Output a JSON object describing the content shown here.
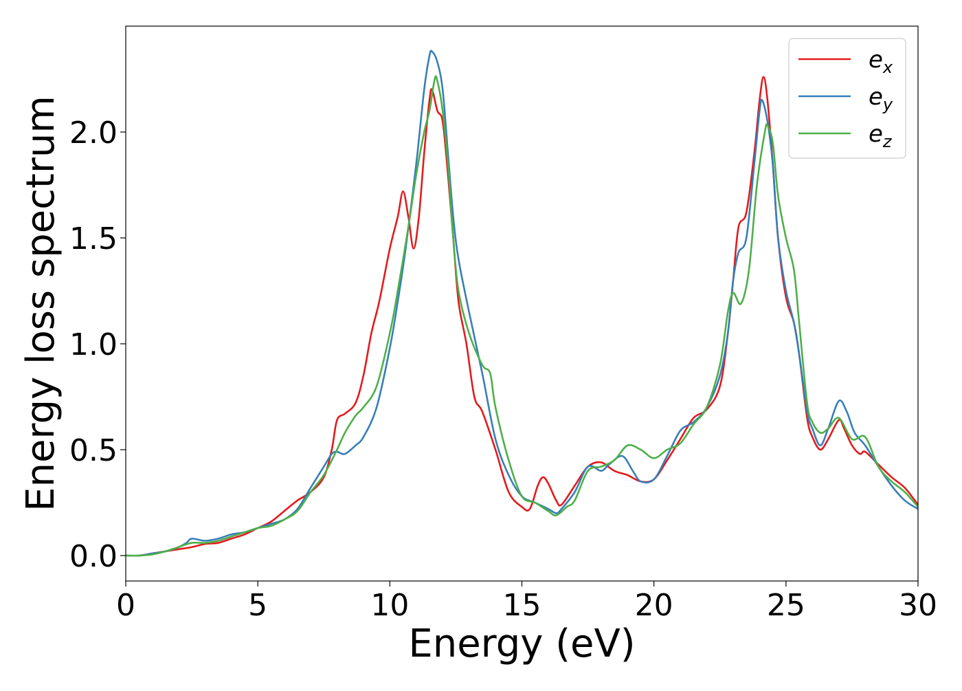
{
  "chart_data": {
    "type": "line",
    "title": "",
    "xlabel": "Energy (eV)",
    "ylabel": "Energy loss spectrum",
    "xlim": [
      0,
      30
    ],
    "ylim": [
      -0.12,
      2.5
    ],
    "xticks": [
      0,
      5,
      10,
      15,
      20,
      25,
      30
    ],
    "xtick_labels": [
      "0",
      "5",
      "10",
      "15",
      "20",
      "25",
      "30"
    ],
    "yticks": [
      0.0,
      0.5,
      1.0,
      1.5,
      2.0
    ],
    "ytick_labels": [
      "0.0",
      "0.5",
      "1.0",
      "1.5",
      "2.0"
    ],
    "grid": false,
    "legend_position": "top-right",
    "series": [
      {
        "name": "e_x",
        "label_base": "e",
        "label_sub": "x",
        "color": "#e41a1c",
        "points": [
          [
            0,
            0
          ],
          [
            0.5,
            0.0
          ],
          [
            1,
            0.01
          ],
          [
            1.5,
            0.02
          ],
          [
            2,
            0.03
          ],
          [
            2.5,
            0.04
          ],
          [
            3,
            0.055
          ],
          [
            3.5,
            0.06
          ],
          [
            4,
            0.08
          ],
          [
            4.5,
            0.1
          ],
          [
            5,
            0.13
          ],
          [
            5.5,
            0.16
          ],
          [
            6,
            0.21
          ],
          [
            6.5,
            0.26
          ],
          [
            7,
            0.3
          ],
          [
            7.5,
            0.37
          ],
          [
            7.8,
            0.5
          ],
          [
            8,
            0.64
          ],
          [
            8.3,
            0.67
          ],
          [
            8.7,
            0.72
          ],
          [
            9,
            0.85
          ],
          [
            9.3,
            1.05
          ],
          [
            9.6,
            1.2
          ],
          [
            10,
            1.45
          ],
          [
            10.3,
            1.6
          ],
          [
            10.5,
            1.72
          ],
          [
            10.7,
            1.6
          ],
          [
            10.9,
            1.45
          ],
          [
            11.1,
            1.6
          ],
          [
            11.3,
            1.9
          ],
          [
            11.5,
            2.15
          ],
          [
            11.6,
            2.2
          ],
          [
            11.8,
            2.1
          ],
          [
            12,
            2.05
          ],
          [
            12.2,
            1.8
          ],
          [
            12.4,
            1.5
          ],
          [
            12.6,
            1.2
          ],
          [
            12.9,
            1.0
          ],
          [
            13.2,
            0.75
          ],
          [
            13.5,
            0.68
          ],
          [
            14,
            0.5
          ],
          [
            14.5,
            0.3
          ],
          [
            15,
            0.23
          ],
          [
            15.3,
            0.22
          ],
          [
            15.6,
            0.33
          ],
          [
            15.8,
            0.37
          ],
          [
            16,
            0.34
          ],
          [
            16.3,
            0.26
          ],
          [
            16.5,
            0.24
          ],
          [
            17,
            0.33
          ],
          [
            17.5,
            0.42
          ],
          [
            18,
            0.44
          ],
          [
            18.5,
            0.4
          ],
          [
            19,
            0.38
          ],
          [
            19.5,
            0.35
          ],
          [
            20,
            0.36
          ],
          [
            20.5,
            0.45
          ],
          [
            21,
            0.55
          ],
          [
            21.5,
            0.65
          ],
          [
            22,
            0.69
          ],
          [
            22.5,
            0.8
          ],
          [
            22.8,
            1.05
          ],
          [
            23,
            1.3
          ],
          [
            23.2,
            1.55
          ],
          [
            23.5,
            1.62
          ],
          [
            23.8,
            1.9
          ],
          [
            24,
            2.15
          ],
          [
            24.15,
            2.26
          ],
          [
            24.3,
            2.15
          ],
          [
            24.5,
            1.85
          ],
          [
            24.7,
            1.5
          ],
          [
            25,
            1.22
          ],
          [
            25.3,
            1.1
          ],
          [
            25.5,
            0.95
          ],
          [
            25.8,
            0.65
          ],
          [
            26,
            0.56
          ],
          [
            26.3,
            0.5
          ],
          [
            26.6,
            0.55
          ],
          [
            27,
            0.64
          ],
          [
            27.2,
            0.6
          ],
          [
            27.5,
            0.52
          ],
          [
            27.8,
            0.48
          ],
          [
            28,
            0.49
          ],
          [
            28.5,
            0.43
          ],
          [
            29,
            0.37
          ],
          [
            29.5,
            0.32
          ],
          [
            30,
            0.24
          ]
        ]
      },
      {
        "name": "e_y",
        "label_base": "e",
        "label_sub": "y",
        "color": "#377eb8",
        "points": [
          [
            0,
            0
          ],
          [
            0.5,
            0.0
          ],
          [
            1,
            0.01
          ],
          [
            1.5,
            0.02
          ],
          [
            2,
            0.04
          ],
          [
            2.3,
            0.06
          ],
          [
            2.5,
            0.08
          ],
          [
            3,
            0.07
          ],
          [
            3.5,
            0.08
          ],
          [
            4,
            0.1
          ],
          [
            4.5,
            0.11
          ],
          [
            5,
            0.13
          ],
          [
            5.5,
            0.15
          ],
          [
            6,
            0.17
          ],
          [
            6.5,
            0.22
          ],
          [
            7,
            0.32
          ],
          [
            7.5,
            0.42
          ],
          [
            7.8,
            0.48
          ],
          [
            8,
            0.49
          ],
          [
            8.3,
            0.48
          ],
          [
            8.7,
            0.52
          ],
          [
            9,
            0.56
          ],
          [
            9.5,
            0.7
          ],
          [
            10,
            0.98
          ],
          [
            10.3,
            1.2
          ],
          [
            10.6,
            1.45
          ],
          [
            11,
            1.85
          ],
          [
            11.3,
            2.2
          ],
          [
            11.5,
            2.36
          ],
          [
            11.6,
            2.38
          ],
          [
            11.8,
            2.33
          ],
          [
            12,
            2.2
          ],
          [
            12.2,
            1.9
          ],
          [
            12.4,
            1.6
          ],
          [
            12.6,
            1.4
          ],
          [
            13,
            1.15
          ],
          [
            13.5,
            0.86
          ],
          [
            14,
            0.55
          ],
          [
            14.5,
            0.38
          ],
          [
            15,
            0.28
          ],
          [
            15.5,
            0.25
          ],
          [
            16,
            0.22
          ],
          [
            16.3,
            0.2
          ],
          [
            16.5,
            0.22
          ],
          [
            17,
            0.3
          ],
          [
            17.5,
            0.42
          ],
          [
            18,
            0.4
          ],
          [
            18.3,
            0.43
          ],
          [
            18.8,
            0.47
          ],
          [
            19.2,
            0.4
          ],
          [
            19.5,
            0.35
          ],
          [
            20,
            0.36
          ],
          [
            20.5,
            0.47
          ],
          [
            21,
            0.59
          ],
          [
            21.5,
            0.63
          ],
          [
            22,
            0.7
          ],
          [
            22.5,
            0.85
          ],
          [
            22.8,
            1.05
          ],
          [
            23,
            1.3
          ],
          [
            23.2,
            1.43
          ],
          [
            23.5,
            1.5
          ],
          [
            23.8,
            1.85
          ],
          [
            24,
            2.1
          ],
          [
            24.1,
            2.15
          ],
          [
            24.3,
            2.05
          ],
          [
            24.5,
            1.85
          ],
          [
            24.7,
            1.5
          ],
          [
            25,
            1.25
          ],
          [
            25.3,
            1.1
          ],
          [
            25.5,
            0.95
          ],
          [
            25.8,
            0.68
          ],
          [
            26,
            0.6
          ],
          [
            26.3,
            0.52
          ],
          [
            26.6,
            0.6
          ],
          [
            27,
            0.73
          ],
          [
            27.3,
            0.68
          ],
          [
            27.6,
            0.58
          ],
          [
            28,
            0.52
          ],
          [
            28.5,
            0.42
          ],
          [
            29,
            0.33
          ],
          [
            29.5,
            0.26
          ],
          [
            30,
            0.22
          ]
        ]
      },
      {
        "name": "e_z",
        "label_base": "e",
        "label_sub": "z",
        "color": "#4daf4a",
        "points": [
          [
            0,
            0
          ],
          [
            0.5,
            0.0
          ],
          [
            1,
            0.005
          ],
          [
            1.5,
            0.02
          ],
          [
            2,
            0.04
          ],
          [
            2.5,
            0.06
          ],
          [
            3,
            0.06
          ],
          [
            3.5,
            0.07
          ],
          [
            4,
            0.09
          ],
          [
            4.5,
            0.11
          ],
          [
            5,
            0.13
          ],
          [
            5.5,
            0.14
          ],
          [
            6,
            0.17
          ],
          [
            6.5,
            0.21
          ],
          [
            7,
            0.3
          ],
          [
            7.5,
            0.38
          ],
          [
            8,
            0.5
          ],
          [
            8.3,
            0.58
          ],
          [
            8.7,
            0.66
          ],
          [
            9,
            0.7
          ],
          [
            9.5,
            0.8
          ],
          [
            10,
            1.05
          ],
          [
            10.3,
            1.25
          ],
          [
            10.7,
            1.55
          ],
          [
            11,
            1.8
          ],
          [
            11.3,
            2.0
          ],
          [
            11.5,
            2.1
          ],
          [
            11.7,
            2.25
          ],
          [
            11.8,
            2.24
          ],
          [
            12,
            2.1
          ],
          [
            12.2,
            1.85
          ],
          [
            12.4,
            1.5
          ],
          [
            12.6,
            1.25
          ],
          [
            13,
            1.05
          ],
          [
            13.5,
            0.9
          ],
          [
            13.8,
            0.86
          ],
          [
            14,
            0.7
          ],
          [
            14.5,
            0.45
          ],
          [
            15,
            0.28
          ],
          [
            15.5,
            0.25
          ],
          [
            16,
            0.21
          ],
          [
            16.3,
            0.19
          ],
          [
            16.7,
            0.23
          ],
          [
            17,
            0.26
          ],
          [
            17.5,
            0.4
          ],
          [
            18,
            0.42
          ],
          [
            18.5,
            0.45
          ],
          [
            19,
            0.52
          ],
          [
            19.5,
            0.5
          ],
          [
            20,
            0.46
          ],
          [
            20.5,
            0.5
          ],
          [
            21,
            0.53
          ],
          [
            21.5,
            0.62
          ],
          [
            22,
            0.7
          ],
          [
            22.5,
            0.9
          ],
          [
            22.8,
            1.15
          ],
          [
            23,
            1.24
          ],
          [
            23.3,
            1.19
          ],
          [
            23.6,
            1.35
          ],
          [
            23.9,
            1.75
          ],
          [
            24.2,
            2.0
          ],
          [
            24.3,
            2.03
          ],
          [
            24.5,
            1.95
          ],
          [
            24.7,
            1.7
          ],
          [
            25,
            1.5
          ],
          [
            25.3,
            1.35
          ],
          [
            25.5,
            1.1
          ],
          [
            25.8,
            0.72
          ],
          [
            26,
            0.63
          ],
          [
            26.3,
            0.58
          ],
          [
            26.6,
            0.6
          ],
          [
            27,
            0.65
          ],
          [
            27.5,
            0.55
          ],
          [
            28,
            0.56
          ],
          [
            28.5,
            0.42
          ],
          [
            29,
            0.35
          ],
          [
            29.5,
            0.3
          ],
          [
            30,
            0.23
          ]
        ]
      }
    ]
  }
}
